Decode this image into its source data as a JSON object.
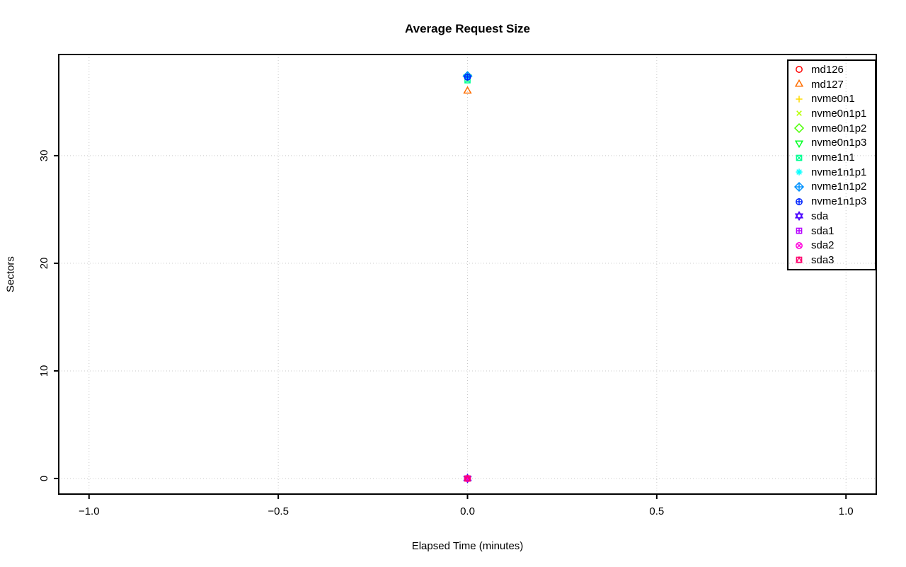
{
  "title": "Average Request Size",
  "chart_data": {
    "type": "scatter",
    "title": "Average Request Size",
    "xlabel": "Elapsed Time (minutes)",
    "ylabel": "Sectors",
    "xlim": [
      -1.08,
      1.08
    ],
    "ylim": [
      -1.45,
      39.4
    ],
    "grid": true,
    "grid_style": "dotted",
    "grid_color": "#c9c9c9",
    "legend_position": "top-right",
    "x_ticks": [
      {
        "value": -1.0,
        "label": "−1.0"
      },
      {
        "value": -0.5,
        "label": "−0.5"
      },
      {
        "value": 0.0,
        "label": "0.0"
      },
      {
        "value": 0.5,
        "label": "0.5"
      },
      {
        "value": 1.0,
        "label": "1.0"
      }
    ],
    "y_ticks": [
      {
        "value": 0,
        "label": "0"
      },
      {
        "value": 10,
        "label": "10"
      },
      {
        "value": 20,
        "label": "20"
      },
      {
        "value": 30,
        "label": "30"
      }
    ],
    "series": [
      {
        "name": "md126",
        "color": "#FF0000",
        "symbol": "circle",
        "points": [
          {
            "x": 0,
            "y": 37.3
          }
        ]
      },
      {
        "name": "md127",
        "color": "#FF6D00",
        "symbol": "triangle-up",
        "points": [
          {
            "x": 0,
            "y": 36.0
          }
        ]
      },
      {
        "name": "nvme0n1",
        "color": "#FFDB00",
        "symbol": "plus",
        "points": [
          {
            "x": 0,
            "y": 37.3
          }
        ]
      },
      {
        "name": "nvme0n1p1",
        "color": "#B6FF00",
        "symbol": "x",
        "points": [
          {
            "x": 0,
            "y": 37.3
          }
        ]
      },
      {
        "name": "nvme0n1p2",
        "color": "#49FF00",
        "symbol": "diamond",
        "points": [
          {
            "x": 0,
            "y": 37.4
          }
        ]
      },
      {
        "name": "nvme0n1p3",
        "color": "#00FF24",
        "symbol": "triangle-down",
        "points": [
          {
            "x": 0,
            "y": 37.3
          }
        ]
      },
      {
        "name": "nvme1n1",
        "color": "#00FF92",
        "symbol": "square-x",
        "points": [
          {
            "x": 0,
            "y": 37.0
          }
        ]
      },
      {
        "name": "nvme1n1p1",
        "color": "#00FFFF",
        "symbol": "asterisk",
        "points": [
          {
            "x": 0,
            "y": 37.3
          }
        ]
      },
      {
        "name": "nvme1n1p2",
        "color": "#0092FF",
        "symbol": "diamond-plus",
        "points": [
          {
            "x": 0,
            "y": 37.4
          }
        ]
      },
      {
        "name": "nvme1n1p3",
        "color": "#0024FF",
        "symbol": "circle-plus",
        "points": [
          {
            "x": 0,
            "y": 37.3
          }
        ]
      },
      {
        "name": "sda",
        "color": "#4900FF",
        "symbol": "star-of-david",
        "points": [
          {
            "x": 0,
            "y": 0
          }
        ]
      },
      {
        "name": "sda1",
        "color": "#B600FF",
        "symbol": "square-plus",
        "points": [
          {
            "x": 0,
            "y": 0
          }
        ]
      },
      {
        "name": "sda2",
        "color": "#FF00DB",
        "symbol": "circle-x",
        "points": [
          {
            "x": 0,
            "y": 0
          }
        ]
      },
      {
        "name": "sda3",
        "color": "#FF006D",
        "symbol": "square-triangle",
        "points": [
          {
            "x": 0,
            "y": 0
          }
        ]
      }
    ]
  }
}
